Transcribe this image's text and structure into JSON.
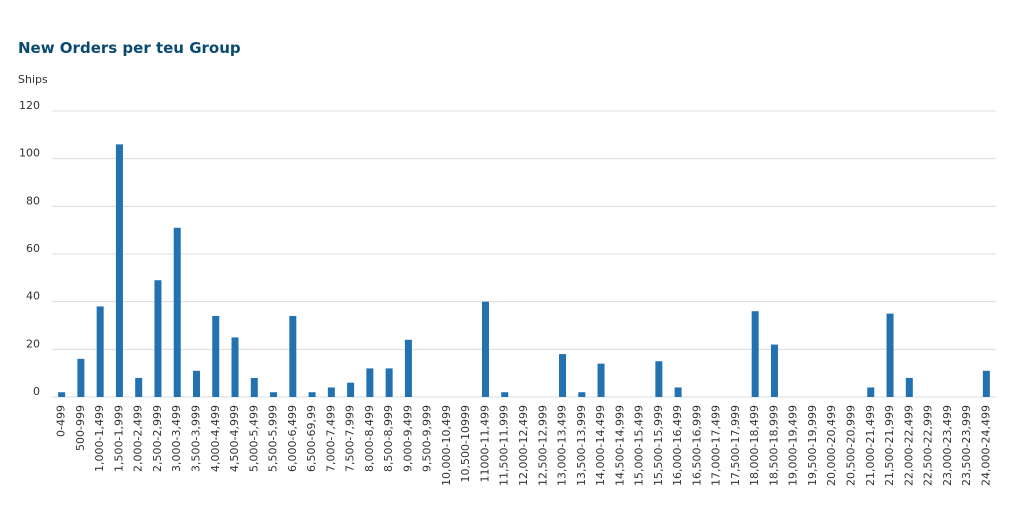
{
  "chart_data": {
    "type": "bar",
    "title": "New Orders per teu Group",
    "y_label": "Ships",
    "categories": [
      "0-499",
      "500-999",
      "1,000-1,499",
      "1,500-1,999",
      "2,000-2,499",
      "2,500-2,999",
      "3,000-3,499",
      "3,500-3,999",
      "4,000-4,499",
      "4,500-4,999",
      "5,000-5,499",
      "5,500-5,999",
      "6,000-6,499",
      "6,500-69,99",
      "7,000-7,499",
      "7,500-7,999",
      "8,000-8,499",
      "8,500-8,999",
      "9,000-9,499",
      "9,500-9,999",
      "10,000-10,499",
      "10,500-10999",
      "11000-11,499",
      "11,500-11,999",
      "12,000-12,499",
      "12,500-12,999",
      "13,000-13,499",
      "13,500-13,999",
      "14,000-14,499",
      "14,500-14,999",
      "15,000-15,499",
      "15,500-15,999",
      "16,000-16,499",
      "16,500-16,999",
      "17,000-17,499",
      "17,500-17,999",
      "18,000-18,499",
      "18,500-18,999",
      "19,000-19,499",
      "19,500-19,999",
      "20,000-20,499",
      "20,500-20,999",
      "21,000-21,499",
      "21,500-21,999",
      "22,000-22,499",
      "22,500-22,999",
      "23,000-23,499",
      "23,500-23,999",
      "24,000-24,499"
    ],
    "values": [
      2,
      16,
      38,
      106,
      8,
      49,
      71,
      11,
      34,
      25,
      8,
      2,
      34,
      2,
      4,
      6,
      12,
      12,
      24,
      0,
      0,
      0,
      40,
      2,
      0,
      0,
      18,
      2,
      14,
      0,
      0,
      15,
      4,
      0,
      0,
      0,
      36,
      22,
      0,
      0,
      0,
      0,
      4,
      35,
      8,
      0,
      0,
      0,
      11
    ],
    "color": "#2271b1",
    "ylim": [
      0,
      120
    ],
    "yticks": [
      0,
      20,
      40,
      60,
      80,
      100,
      120
    ],
    "grid": true
  }
}
